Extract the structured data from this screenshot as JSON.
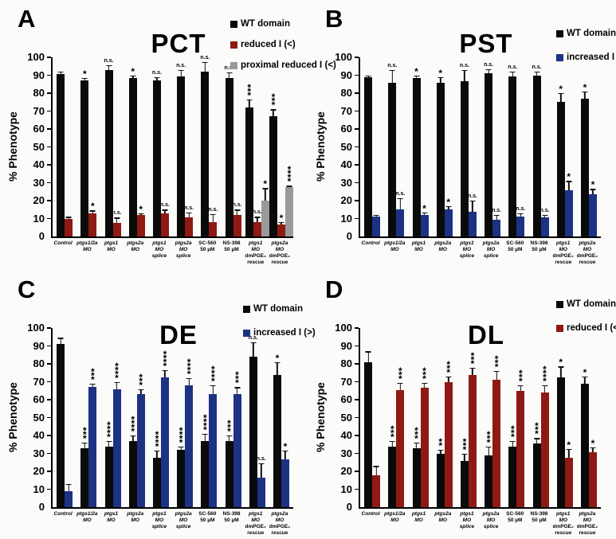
{
  "ui": {
    "type": "scientific-figure",
    "panel_count": 4,
    "background": "#fbfbf9"
  },
  "colors": {
    "wt_black": "#0a0a0a",
    "reduced_red": "#8e1a13",
    "increased_blue": "#1c3282",
    "proximal_gray": "#9a9a9a"
  },
  "category_label_lines": [
    [
      {
        "t": "Control",
        "i": true
      }
    ],
    [
      {
        "t": "ptgs1/2a",
        "i": true
      },
      {
        "t": "MO",
        "i": true
      }
    ],
    [
      {
        "t": "ptgs1",
        "i": true
      },
      {
        "t": "MO",
        "i": true
      }
    ],
    [
      {
        "t": "ptgs2a",
        "i": true
      },
      {
        "t": "MO",
        "i": true
      }
    ],
    [
      {
        "t": "ptgs1",
        "i": true
      },
      {
        "t": "MO splice",
        "i": true
      }
    ],
    [
      {
        "t": "ptgs2a",
        "i": true
      },
      {
        "t": "MO splice",
        "i": true
      }
    ],
    [
      {
        "t": "SC-560",
        "i": false
      },
      {
        "t": "50 µM",
        "i": false
      }
    ],
    [
      {
        "t": "NS-398",
        "i": false
      },
      {
        "t": "50 µM",
        "i": false
      }
    ],
    [
      {
        "t": "ptgs1 MO",
        "i": true
      },
      {
        "t": "dmPGE₂",
        "i": false,
        "b": true
      },
      {
        "t": "rescue",
        "i": false
      }
    ],
    [
      {
        "t": "ptgs2a MO",
        "i": true
      },
      {
        "t": "dmPGE₂",
        "i": false,
        "b": true
      },
      {
        "t": "rescue",
        "i": false
      }
    ]
  ],
  "chart_data": [
    {
      "type": "bar",
      "panel_letter": "A",
      "title": "PCT",
      "ylabel": "% Phenotype",
      "ylim": [
        0,
        100
      ],
      "ytick_step": 10,
      "grid": false,
      "legend_position": "top-right",
      "categories": [
        "Control",
        "ptgs1/2a MO",
        "ptgs1 MO",
        "ptgs2a MO",
        "ptgs1 MO splice",
        "ptgs2a MO splice",
        "SC-560 50 µM",
        "NS-398 50 µM",
        "ptgs1 MO dmPGE₂ rescue",
        "ptgs2a MO dmPGE₂ rescue"
      ],
      "series": [
        {
          "name": "WT domain",
          "color": "#0a0a0a",
          "values": [
            90.5,
            87,
            93,
            88.5,
            87,
            89.5,
            92,
            88.5,
            72,
            67
          ],
          "errors": [
            1.5,
            1.5,
            2.5,
            1.5,
            2,
            3.5,
            5.5,
            3,
            4.5,
            4
          ],
          "sig": [
            "",
            "*",
            "n.s.",
            "*",
            "n.s.",
            "n.s.",
            "n.s.",
            "n.s.",
            "***",
            "***"
          ]
        },
        {
          "name": "reduced I (<)",
          "color": "#8e1a13",
          "values": [
            10,
            13,
            7.5,
            12,
            13,
            10.5,
            8,
            12,
            8,
            6.5
          ],
          "errors": [
            1,
            1.5,
            3,
            1,
            2,
            3,
            4.5,
            3,
            3,
            1.5
          ],
          "sig": [
            "",
            "*",
            "n.s.",
            "*",
            "n.s.",
            "n.s.",
            "n.s.",
            "n.s.",
            "n.s.",
            "*"
          ]
        },
        {
          "name": "proximal reduced I (<)",
          "color": "#9a9a9a",
          "values": [
            null,
            null,
            null,
            null,
            null,
            null,
            null,
            null,
            20,
            27.5
          ],
          "errors": [
            0,
            0,
            0,
            0,
            0,
            0,
            0,
            0,
            7,
            0.8
          ],
          "sig": [
            "",
            "",
            "",
            "",
            "",
            "",
            "",
            "",
            "*",
            "****"
          ]
        }
      ]
    },
    {
      "type": "bar",
      "panel_letter": "B",
      "title": "PST",
      "ylabel": "% Phenotype",
      "ylim": [
        0,
        100
      ],
      "ytick_step": 10,
      "grid": false,
      "legend_position": "top-right",
      "categories": [
        "Control",
        "ptgs1/2a MO",
        "ptgs1 MO",
        "ptgs2a MO",
        "ptgs1 MO splice",
        "ptgs2a MO splice",
        "SC-560 50 µM",
        "NS-398 50 µM",
        "ptgs1 MO dmPGE₂ rescue",
        "ptgs2a MO dmPGE₂ rescue"
      ],
      "series": [
        {
          "name": "WT domain",
          "color": "#0a0a0a",
          "values": [
            89,
            86,
            88.5,
            86,
            86.5,
            91,
            89.5,
            90,
            75,
            77
          ],
          "errors": [
            1,
            7,
            1.5,
            3,
            6.5,
            2.5,
            2.5,
            2,
            5,
            4
          ],
          "sig": [
            "",
            "n.s.",
            "*",
            "*",
            "n.s.",
            "n.s.",
            "n.s.",
            "n.s.",
            "*",
            "*"
          ]
        },
        {
          "name": "increased I (>)",
          "color": "#1c3282",
          "values": [
            11,
            15,
            12,
            15,
            14,
            9.5,
            11,
            10.5,
            26,
            23.5
          ],
          "errors": [
            1,
            6.5,
            1.5,
            2,
            6,
            2.5,
            2,
            1.5,
            5,
            3
          ],
          "sig": [
            "",
            "n.s.",
            "*",
            "*",
            "n.s.",
            "n.s.",
            "n.s.",
            "n.s.",
            "*",
            "*"
          ]
        }
      ]
    },
    {
      "type": "bar",
      "panel_letter": "C",
      "title": "DE",
      "ylabel": "% Phenotype",
      "ylim": [
        0,
        100
      ],
      "ytick_step": 10,
      "grid": false,
      "legend_position": "top-right",
      "categories": [
        "Control",
        "ptgs1/2a MO",
        "ptgs1 MO",
        "ptgs2a MO",
        "ptgs1 MO splice",
        "ptgs2a MO splice",
        "SC-560 50 µM",
        "NS-398 50 µM",
        "ptgs1 MO dmPGE₂ rescue",
        "ptgs2a MO dmPGE₂ rescue"
      ],
      "series": [
        {
          "name": "WT domain",
          "color": "#0a0a0a",
          "values": [
            91,
            33,
            34,
            37,
            27.5,
            32,
            37,
            37,
            84,
            74
          ],
          "errors": [
            3.5,
            3,
            3,
            3,
            4,
            2,
            4,
            3,
            8,
            7
          ],
          "sig": [
            "",
            "***",
            "****",
            "****",
            "****",
            "****",
            "****",
            "***",
            "n.s.",
            "*"
          ]
        },
        {
          "name": "increased I (>)",
          "color": "#1c3282",
          "values": [
            9,
            67,
            66,
            63,
            72.5,
            68,
            63,
            63,
            16.5,
            26.5
          ],
          "errors": [
            4,
            2,
            4,
            3,
            4,
            4,
            5,
            4,
            8,
            5
          ],
          "sig": [
            "",
            "***",
            "****",
            "***",
            "****",
            "****",
            "****",
            "***",
            "n.s.",
            "*"
          ]
        }
      ]
    },
    {
      "type": "bar",
      "panel_letter": "D",
      "title": "DL",
      "ylabel": "% Phenotype",
      "ylim": [
        0,
        100
      ],
      "ytick_step": 10,
      "grid": false,
      "legend_position": "top-right",
      "categories": [
        "Control",
        "ptgs1/2a MO",
        "ptgs1 MO",
        "ptgs2a MO",
        "ptgs1 MO splice",
        "ptgs2a MO splice",
        "SC-560 50 µM",
        "NS-398 50 µM",
        "ptgs1 MO dmPGE₂ rescue",
        "ptgs2a MO dmPGE₂ rescue"
      ],
      "series": [
        {
          "name": "WT domain",
          "color": "#0a0a0a",
          "values": [
            81,
            34,
            33,
            30,
            26,
            29,
            34,
            35.5,
            72.5,
            69
          ],
          "errors": [
            6,
            3,
            3,
            2,
            4,
            5,
            3,
            3,
            6,
            4
          ],
          "sig": [
            "",
            "***",
            "***",
            "**",
            "***",
            "***",
            "***",
            "***",
            "*",
            "*"
          ]
        },
        {
          "name": "reduced I (<)",
          "color": "#8e1a13",
          "values": [
            18,
            65.5,
            66.5,
            70,
            74,
            71,
            65,
            64,
            27.5,
            30.5
          ],
          "errors": [
            5,
            4,
            3,
            3,
            4,
            5,
            3,
            4,
            5,
            3
          ],
          "sig": [
            "",
            "***",
            "***",
            "***",
            "***",
            "***",
            "***",
            "****",
            "*",
            "*"
          ]
        }
      ]
    }
  ]
}
